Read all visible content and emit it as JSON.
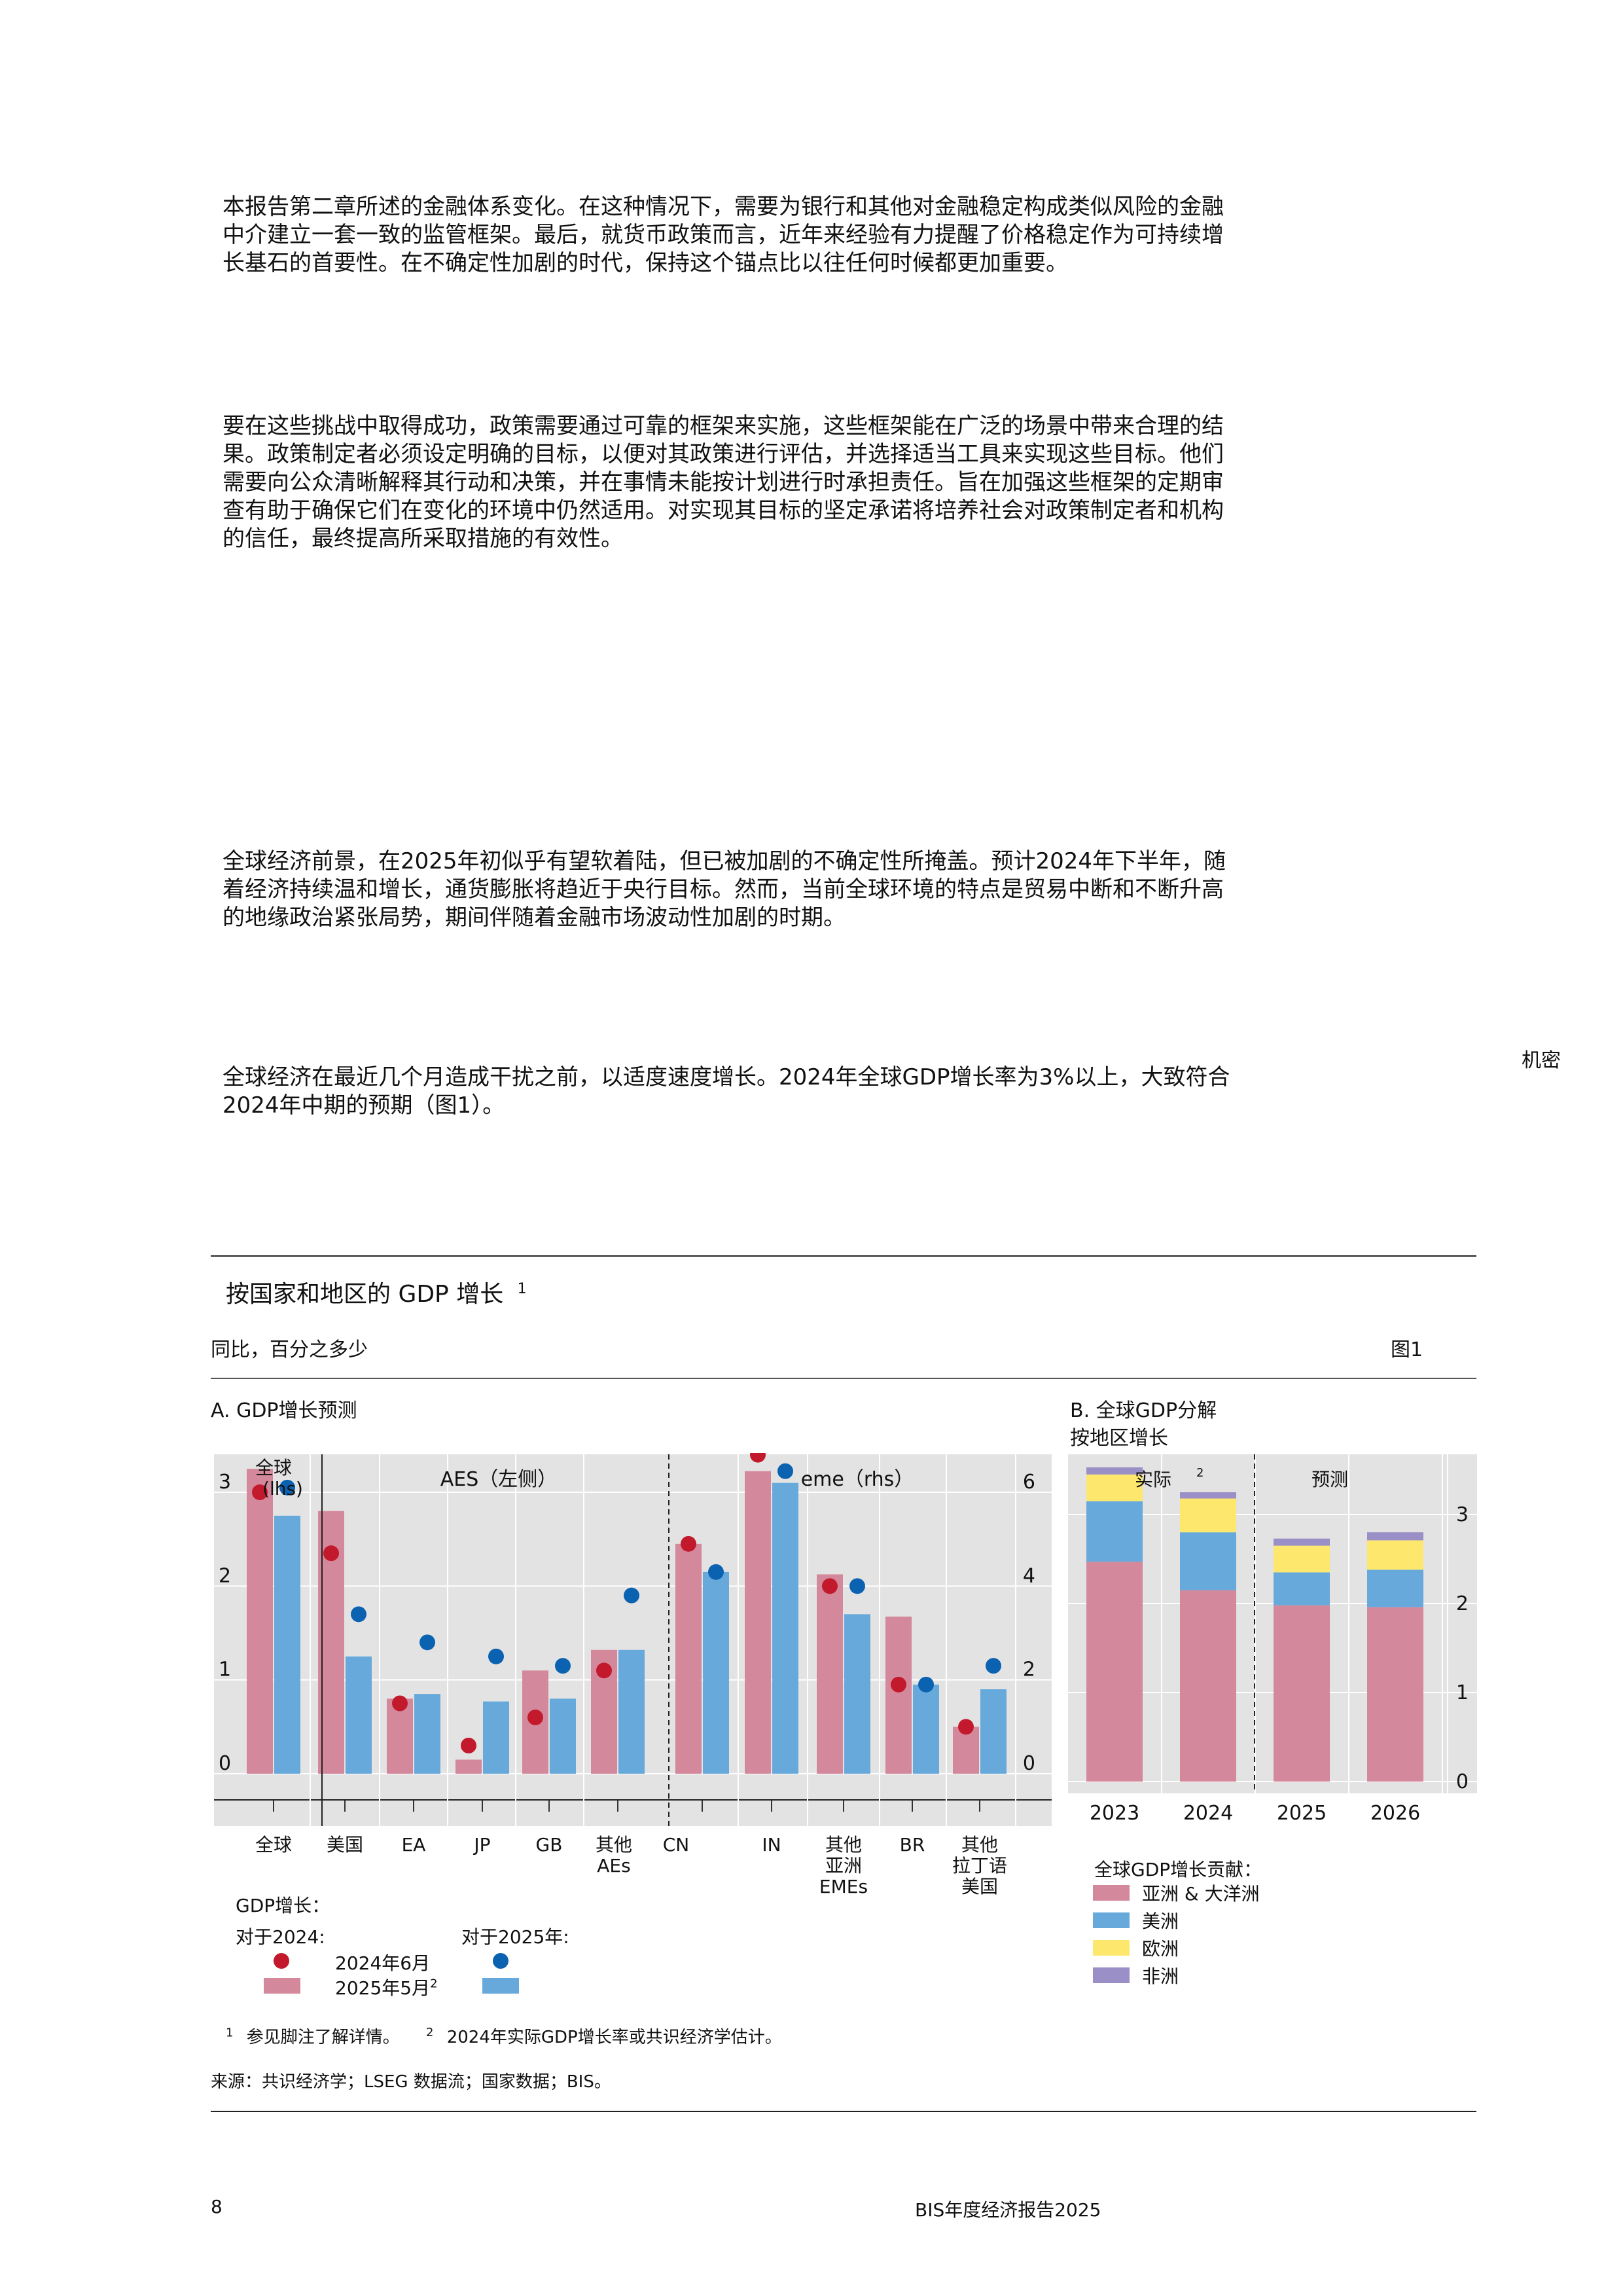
{
  "paragraphs": [
    "本报告第二章所述的金融体系变化。在这种情况下，需要为银行和其他对金融稳定构成类似风险的金融中介建立一套一致的监管框架。最后，就货币政策而言，近年来经验有力提醒了价格稳定作为可持续增长基石的首要性。在不确定性加剧的时代，保持这个锚点比以往任何时候都更加重要。",
    "要在这些挑战中取得成功，政策需要通过可靠的框架来实施，这些框架能在广泛的场景中带来合理的结果。政策制定者必须设定明确的目标，以便对其政策进行评估，并选择适当工具来实现这些目标。他们需要向公众清晰解释其行动和决策，并在事情未能按计划进行时承担责任。旨在加强这些框架的定期审查有助于确保它们在变化的环境中仍然适用。对实现其目标的坚定承诺将培养社会对政策制定者和机构的信任，最终提高所采取措施的有效性。",
    "全球经济前景，在2025年初似乎有望软着陆，但已被加剧的不确定性所掩盖。预计2024年下半年，随着经济持续温和增长，通货膨胀将趋近于央行目标。然而，当前全球环境的特点是贸易中断和不断升高的地缘政治紧张局势，期间伴随着金融市场波动性加剧的时期。",
    "全球经济在最近几个月造成干扰之前，以适度速度增长。2024年全球GDP增长率为3%以上，大致符合2024年中期的预期（图1）。"
  ],
  "side_note": "机密",
  "figure": {
    "title": "按国家和地区的 GDP 增长",
    "title_sup": "1",
    "subtitle": "同比，百分之多少",
    "figure_label": "图1",
    "footnote1_mark": "1",
    "footnote1_text": "参见脚注了解详情。",
    "footnote2_mark": "2",
    "footnote2_text": "2024年实际GDP增长率或共识经济学估计。",
    "source": "来源：共识经济学；LSEG 数据流；国家数据；BIS。"
  },
  "footer": {
    "page_number": "8",
    "publication": "BIS年度经济报告2025"
  },
  "colors": {
    "pink": "#d4889b",
    "blue": "#68a9dc",
    "red_dot": "#c21a2c",
    "blue_dot": "#0a62b0",
    "yellow": "#fde86d",
    "purple": "#9a8fc6",
    "panel_bg": "#e3e3e3"
  },
  "chart_data": [
    {
      "type": "bar",
      "panel_title": "A. GDP增长预测",
      "group_labels": {
        "global": "全球\n(lhs)",
        "aes": "AES（左侧）",
        "emes": "eme（rhs）"
      },
      "categories": [
        "全球",
        "美国",
        "EA",
        "JP",
        "GB",
        "其他\nAEs",
        "CN",
        "IN",
        "其他\n亚洲\nEMEs",
        "BR",
        "其他\n拉丁语\n美国"
      ],
      "category_axis": [
        "lhs",
        "lhs",
        "lhs",
        "lhs",
        "lhs",
        "lhs",
        "rhs",
        "rhs",
        "rhs",
        "rhs",
        "rhs"
      ],
      "ylim_lhs": [
        -0.4,
        3.3
      ],
      "ylim_rhs": [
        -0.8,
        6.6
      ],
      "yticks_lhs": [
        0,
        1,
        2,
        3
      ],
      "yticks_rhs": [
        0,
        2,
        4,
        6
      ],
      "legend_title": "GDP增长：",
      "legend_2024": "对于2024:",
      "legend_2025": "对于2025年:",
      "series": [
        {
          "name": "2024年6月",
          "kind": "dot",
          "for": "2024",
          "values": [
            3.0,
            2.35,
            0.75,
            0.3,
            0.6,
            1.1,
            4.9,
            6.8,
            4.0,
            1.9,
            1.0
          ]
        },
        {
          "name": "2025年5月",
          "sup": "2",
          "kind": "bar",
          "for": "2024",
          "values": [
            3.25,
            2.8,
            0.8,
            0.15,
            1.1,
            1.32,
            4.9,
            6.45,
            4.25,
            3.35,
            1.0
          ]
        },
        {
          "name": "2024年6月",
          "kind": "dot",
          "for": "2025",
          "values": [
            3.05,
            1.7,
            1.4,
            1.25,
            1.15,
            1.9,
            4.3,
            6.45,
            4.0,
            1.9,
            2.3
          ]
        },
        {
          "name": "2025年5月",
          "kind": "bar",
          "for": "2025",
          "values": [
            2.75,
            1.25,
            0.85,
            0.77,
            0.8,
            1.32,
            4.3,
            6.2,
            3.4,
            1.9,
            1.8
          ]
        }
      ]
    },
    {
      "type": "bar",
      "stacked": true,
      "panel_title": "B. 全球GDP分解按地区增长",
      "panel_title_line1": "B. 全球GDP分解",
      "panel_title_line2": "按地区增长",
      "region_labels": {
        "actual": "实际",
        "actual_sup": "2",
        "forecast": "预测"
      },
      "categories": [
        "2023",
        "2024",
        "2025",
        "2026"
      ],
      "ylim": [
        -0.15,
        3.8
      ],
      "yticks": [
        0,
        1,
        2,
        3
      ],
      "legend_title": "全球GDP增长贡献：",
      "series": [
        {
          "name": "亚洲 & 大洋洲",
          "values": [
            2.47,
            2.15,
            1.98,
            1.96
          ]
        },
        {
          "name": "美洲",
          "values": [
            0.68,
            0.65,
            0.37,
            0.42
          ]
        },
        {
          "name": "欧洲",
          "values": [
            0.3,
            0.38,
            0.3,
            0.33
          ]
        },
        {
          "name": "非洲",
          "values": [
            0.08,
            0.07,
            0.08,
            0.09
          ]
        }
      ]
    }
  ]
}
